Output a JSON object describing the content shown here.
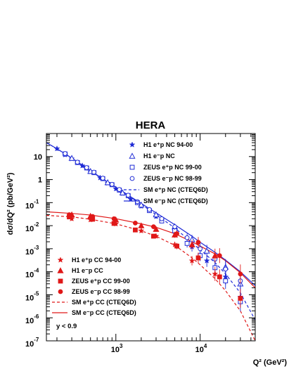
{
  "chart_data": {
    "type": "scatter",
    "title": "HERA",
    "xlabel": "Q² (GeV²)",
    "ylabel": "dσ/dQ² (pb/GeV²)",
    "xscale": "log",
    "yscale": "log",
    "xlim": [
      150,
      45000
    ],
    "ylim": [
      1e-07,
      100
    ],
    "annotation": "y < 0.9",
    "x_ticks": [
      {
        "value": 1000,
        "base": "10",
        "exp": "3"
      },
      {
        "value": 10000,
        "base": "10",
        "exp": "4"
      }
    ],
    "y_ticks": [
      {
        "value": 10,
        "base": "10",
        "exp": ""
      },
      {
        "value": 1,
        "base": "1",
        "exp": ""
      },
      {
        "value": 0.1,
        "base": "10",
        "exp": "-1"
      },
      {
        "value": 0.01,
        "base": "10",
        "exp": "-2"
      },
      {
        "value": 0.001,
        "base": "10",
        "exp": "-3"
      },
      {
        "value": 0.0001,
        "base": "10",
        "exp": "-4"
      },
      {
        "value": 1e-05,
        "base": "10",
        "exp": "-5"
      },
      {
        "value": 1e-06,
        "base": "10",
        "exp": "-6"
      },
      {
        "value": 1e-07,
        "base": "10",
        "exp": "-7"
      }
    ],
    "legend_nc": [
      {
        "label": "H1 e⁺p NC 94-00",
        "marker": "star",
        "color": "#1f2bd6"
      },
      {
        "label": "H1 e⁻p NC",
        "marker": "triangle-open",
        "color": "#1f2bd6"
      },
      {
        "label": "ZEUS e⁺p NC 99-00",
        "marker": "square-open",
        "color": "#1f2bd6"
      },
      {
        "label": "ZEUS e⁻p NC 98-99",
        "marker": "circle-open",
        "color": "#1f2bd6"
      },
      {
        "label": "SM e⁺p NC (CTEQ6D)",
        "line": "dashed",
        "color": "#1f2bd6"
      },
      {
        "label": "SM e⁻p NC (CTEQ6D)",
        "line": "solid",
        "color": "#1f2bd6"
      }
    ],
    "legend_cc": [
      {
        "label": "H1 e⁺p CC 94-00",
        "marker": "star",
        "color": "#e01818"
      },
      {
        "label": "H1 e⁻p CC",
        "marker": "triangle",
        "color": "#e01818"
      },
      {
        "label": "ZEUS e⁺p CC 99-00",
        "marker": "square",
        "color": "#e01818"
      },
      {
        "label": "ZEUS e⁻p CC 98-99",
        "marker": "circle",
        "color": "#e01818"
      },
      {
        "label": "SM e⁺p CC (CTEQ6D)",
        "line": "dashed",
        "color": "#e01818"
      },
      {
        "label": "SM e⁻p CC (CTEQ6D)",
        "line": "solid",
        "color": "#e01818"
      }
    ],
    "series": [
      {
        "name": "H1 e⁺p NC 94-00",
        "marker": "star",
        "color": "#1f2bd6",
        "fill": true,
        "x": [
          200,
          250,
          300,
          400,
          500,
          650,
          800,
          1000,
          1200,
          1500,
          2000,
          3000,
          5000,
          8000,
          12000,
          20000,
          30000
        ],
        "y": [
          22,
          12,
          8,
          4,
          2.2,
          1.2,
          0.7,
          0.4,
          0.25,
          0.14,
          0.07,
          0.025,
          0.006,
          0.0012,
          0.0003,
          6e-05,
          8e-06
        ]
      },
      {
        "name": "H1 e⁻p NC",
        "marker": "triangle-open",
        "color": "#1f2bd6",
        "fill": false,
        "x": [
          300,
          500,
          800,
          1200,
          2000,
          3000,
          5000,
          8000,
          12000,
          20000,
          30000
        ],
        "y": [
          8.5,
          2.3,
          0.75,
          0.27,
          0.08,
          0.03,
          0.009,
          0.0025,
          0.0008,
          0.00016,
          3e-05
        ]
      },
      {
        "name": "ZEUS e⁺p NC 99-00",
        "marker": "square-open",
        "color": "#1f2bd6",
        "fill": false,
        "x": [
          250,
          350,
          450,
          550,
          700,
          900,
          1100,
          1400,
          1800,
          2500,
          3500,
          5000,
          7000,
          10000,
          15000,
          20000,
          30000
        ],
        "y": [
          13,
          5.5,
          3.2,
          2.0,
          1.1,
          0.6,
          0.35,
          0.2,
          0.1,
          0.045,
          0.016,
          0.006,
          0.0017,
          0.0005,
          0.00015,
          4e-05,
          5e-06
        ]
      },
      {
        "name": "ZEUS e⁻p NC 98-99",
        "marker": "circle-open",
        "color": "#1f2bd6",
        "fill": false,
        "x": [
          250,
          350,
          450,
          550,
          700,
          900,
          1100,
          1400,
          1800,
          2500,
          3500,
          5000,
          7000,
          10000,
          15000,
          20000,
          30000
        ],
        "y": [
          13.5,
          5.7,
          3.3,
          2.1,
          1.15,
          0.62,
          0.37,
          0.21,
          0.11,
          0.05,
          0.02,
          0.009,
          0.003,
          0.001,
          0.00035,
          0.00013,
          4e-05
        ]
      },
      {
        "name": "H1 e⁺p CC 94-00",
        "marker": "star",
        "color": "#e01818",
        "fill": true,
        "x": [
          300,
          500,
          1000,
          2000,
          3000,
          5000,
          8000,
          15000
        ],
        "y": [
          0.02,
          0.018,
          0.012,
          0.006,
          0.0035,
          0.0015,
          0.0003,
          8e-05
        ]
      },
      {
        "name": "H1 e⁻p CC",
        "marker": "triangle",
        "color": "#e01818",
        "fill": true,
        "x": [
          300,
          500,
          1000,
          2000,
          3000,
          5000,
          8000,
          15000
        ],
        "y": [
          0.03,
          0.026,
          0.018,
          0.01,
          0.007,
          0.004,
          0.0015,
          0.0005
        ]
      },
      {
        "name": "ZEUS e⁺p CC 99-00",
        "marker": "square",
        "color": "#e01818",
        "fill": true,
        "x": [
          280,
          530,
          950,
          1700,
          2800,
          5300,
          9500,
          17000,
          30000
        ],
        "y": [
          0.024,
          0.019,
          0.0125,
          0.0065,
          0.0035,
          0.0013,
          0.0004,
          6e-05,
          7e-06
        ]
      },
      {
        "name": "ZEUS e⁻p CC 98-99",
        "marker": "circle",
        "color": "#e01818",
        "fill": true,
        "x": [
          280,
          530,
          950,
          1700,
          2800,
          5300,
          9500,
          17000,
          30000
        ],
        "y": [
          0.03,
          0.025,
          0.02,
          0.013,
          0.009,
          0.0045,
          0.0019,
          0.0005,
          8e-05
        ]
      }
    ],
    "curves": [
      {
        "name": "SM e⁺p NC (CTEQ6D)",
        "style": "dashed",
        "color": "#1f2bd6",
        "x": [
          150,
          200,
          300,
          500,
          800,
          1000,
          1500,
          2000,
          3000,
          5000,
          8000,
          10000,
          15000,
          20000,
          30000,
          45000
        ],
        "y": [
          40,
          22,
          8.5,
          2.4,
          0.75,
          0.45,
          0.17,
          0.085,
          0.03,
          0.008,
          0.0018,
          0.0009,
          0.00025,
          8e-05,
          1.2e-05,
          8e-07
        ]
      },
      {
        "name": "SM e⁻p NC (CTEQ6D)",
        "style": "solid",
        "color": "#1f2bd6",
        "x": [
          150,
          200,
          300,
          500,
          800,
          1000,
          1500,
          2000,
          3000,
          5000,
          8000,
          10000,
          15000,
          20000,
          30000,
          45000
        ],
        "y": [
          40,
          22,
          8.6,
          2.45,
          0.78,
          0.47,
          0.18,
          0.092,
          0.036,
          0.011,
          0.0035,
          0.0019,
          0.0007,
          0.00032,
          0.0001,
          2.5e-05
        ]
      },
      {
        "name": "SM e⁺p CC (CTEQ6D)",
        "style": "dashed",
        "color": "#e01818",
        "x": [
          150,
          300,
          500,
          1000,
          2000,
          3000,
          5000,
          8000,
          10000,
          15000,
          20000,
          30000,
          45000
        ],
        "y": [
          0.028,
          0.024,
          0.019,
          0.012,
          0.006,
          0.0035,
          0.0014,
          0.0004,
          0.0002,
          5e-05,
          1.5e-05,
          2e-06,
          1e-07
        ]
      },
      {
        "name": "SM e⁻p CC (CTEQ6D)",
        "style": "solid",
        "color": "#e01818",
        "x": [
          150,
          300,
          500,
          1000,
          2000,
          3000,
          5000,
          8000,
          10000,
          15000,
          20000,
          30000,
          45000
        ],
        "y": [
          0.04,
          0.034,
          0.029,
          0.02,
          0.012,
          0.0085,
          0.0045,
          0.002,
          0.0013,
          0.0006,
          0.0003,
          9e-05,
          2e-05
        ]
      }
    ]
  }
}
